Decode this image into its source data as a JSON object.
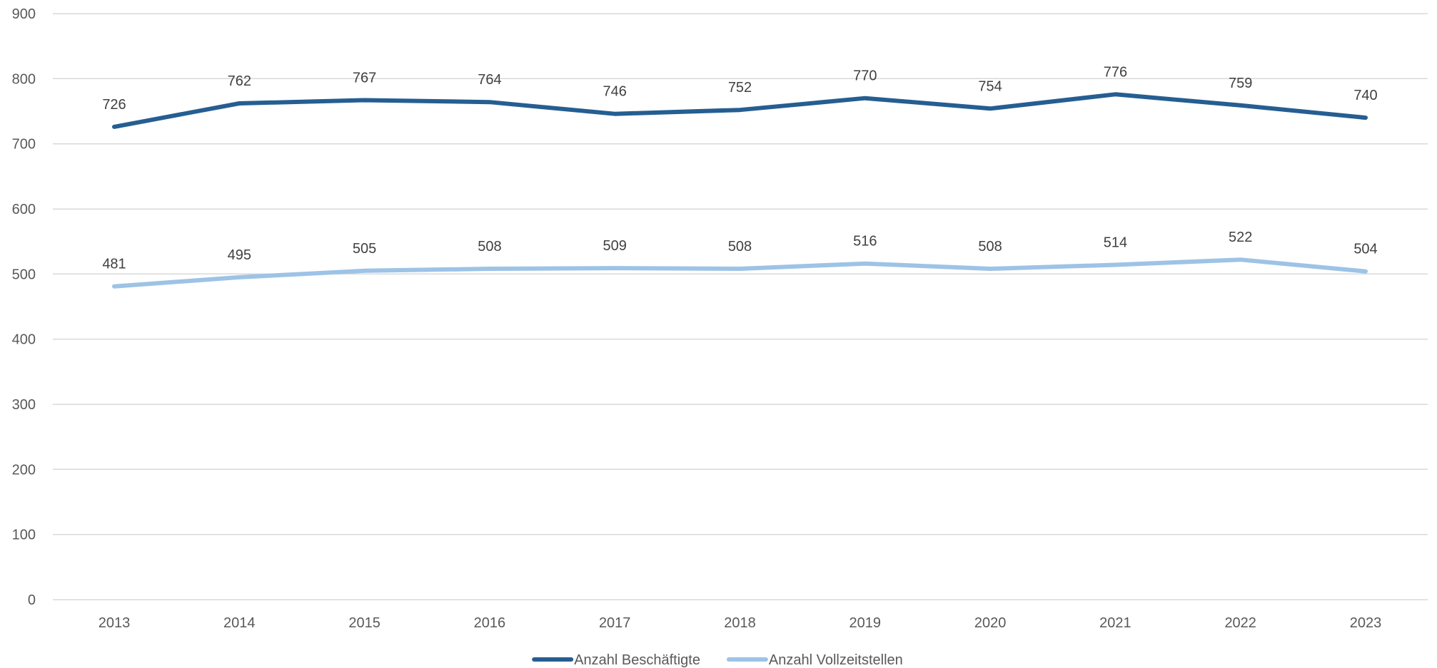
{
  "chart_data": {
    "type": "line",
    "x": [
      "2013",
      "2014",
      "2015",
      "2016",
      "2017",
      "2018",
      "2019",
      "2020",
      "2021",
      "2022",
      "2023"
    ],
    "series": [
      {
        "name": "Anzahl Beschäftigte",
        "color": "#255e91",
        "values": [
          726,
          762,
          767,
          764,
          746,
          752,
          770,
          754,
          776,
          759,
          740
        ]
      },
      {
        "name": "Anzahl Vollzeitstellen",
        "color": "#9dc3e6",
        "values": [
          481,
          495,
          505,
          508,
          509,
          508,
          516,
          508,
          514,
          522,
          504
        ]
      }
    ],
    "ylim": [
      0,
      900
    ],
    "yticks": [
      0,
      100,
      200,
      300,
      400,
      500,
      600,
      700,
      800,
      900
    ],
    "grid": true,
    "data_labels": true,
    "legend_position": "bottom",
    "gridline_color": "#d9d9d9"
  }
}
